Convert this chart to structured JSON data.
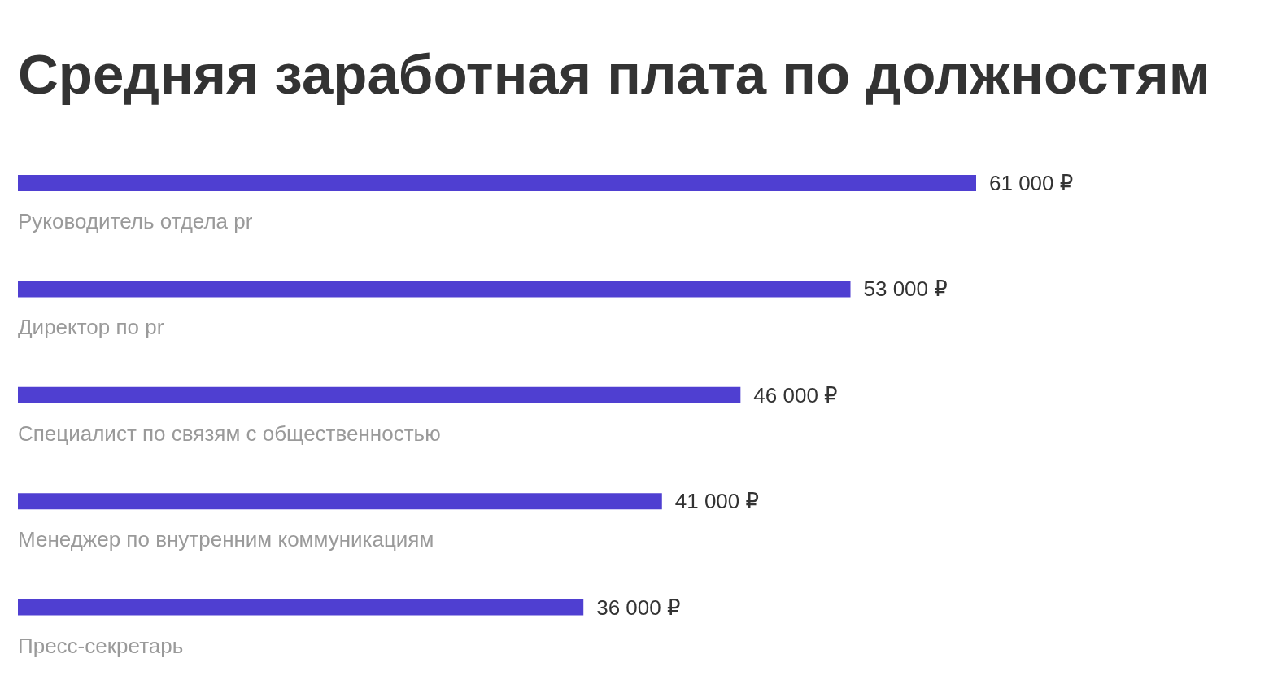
{
  "chart_data": {
    "type": "bar",
    "orientation": "horizontal",
    "title": "Средняя заработная плата по должностям",
    "categories": [
      "Руководитель отдела pr",
      "Директор по pr",
      "Специалист по связям с общественностью",
      "Менеджер по внутренним коммуникациям",
      "Пресс-секретарь"
    ],
    "values": [
      61000,
      53000,
      46000,
      41000,
      36000
    ],
    "value_labels": [
      "61 000 ₽",
      "53 000 ₽",
      "46 000 ₽",
      "41 000 ₽",
      "36 000 ₽"
    ],
    "color": "#4f3fd1"
  }
}
